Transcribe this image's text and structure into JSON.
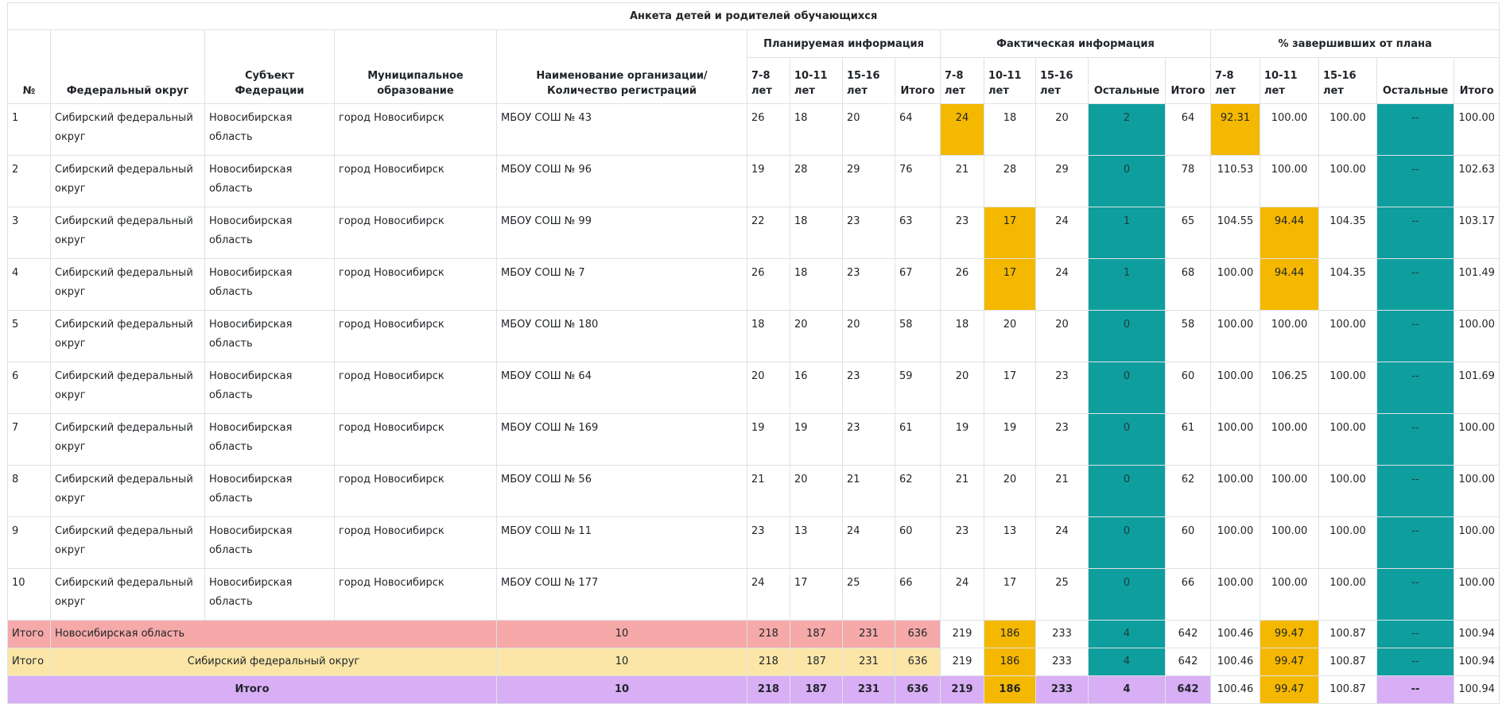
{
  "title": "Анкета детей и родителей обучающихся",
  "headers": {
    "no": "№",
    "okrug": "Федеральный округ",
    "subject": "Субъект Федерации",
    "municipal": "Муниципальное образование",
    "org": "Наименование организации/ Количество регистраций",
    "planned": "Планируемая информация",
    "actual": "Фактическая информация",
    "percent": "% завершивших от плана",
    "age_7_8": "7-8 лет",
    "age_10_11": "10-11 лет",
    "age_15_16": "15-16 лет",
    "others": "Остальные",
    "total": "Итого"
  },
  "rows": [
    {
      "no": "1",
      "okrug": "Сибирский федеральный округ",
      "subject": "Новосибирская область",
      "municipal": "город Новосибирск",
      "org": "МБОУ СОШ № 43",
      "p78": "26",
      "p1011": "18",
      "p1516": "20",
      "ptot": "64",
      "f78": "24",
      "f1011": "18",
      "f1516": "20",
      "fo": "2",
      "ftot": "64",
      "c78": "92.31",
      "c1011": "100.00",
      "c1516": "100.00",
      "co": "--",
      "ctot": "100.00"
    },
    {
      "no": "2",
      "okrug": "Сибирский федеральный округ",
      "subject": "Новосибирская область",
      "municipal": "город Новосибирск",
      "org": "МБОУ СОШ № 96",
      "p78": "19",
      "p1011": "28",
      "p1516": "29",
      "ptot": "76",
      "f78": "21",
      "f1011": "28",
      "f1516": "29",
      "fo": "0",
      "ftot": "78",
      "c78": "110.53",
      "c1011": "100.00",
      "c1516": "100.00",
      "co": "--",
      "ctot": "102.63"
    },
    {
      "no": "3",
      "okrug": "Сибирский федеральный округ",
      "subject": "Новосибирская область",
      "municipal": "город Новосибирск",
      "org": "МБОУ СОШ № 99",
      "p78": "22",
      "p1011": "18",
      "p1516": "23",
      "ptot": "63",
      "f78": "23",
      "f1011": "17",
      "f1516": "24",
      "fo": "1",
      "ftot": "65",
      "c78": "104.55",
      "c1011": "94.44",
      "c1516": "104.35",
      "co": "--",
      "ctot": "103.17"
    },
    {
      "no": "4",
      "okrug": "Сибирский федеральный округ",
      "subject": "Новосибирская область",
      "municipal": "город Новосибирск",
      "org": "МБОУ СОШ № 7",
      "p78": "26",
      "p1011": "18",
      "p1516": "23",
      "ptot": "67",
      "f78": "26",
      "f1011": "17",
      "f1516": "24",
      "fo": "1",
      "ftot": "68",
      "c78": "100.00",
      "c1011": "94.44",
      "c1516": "104.35",
      "co": "--",
      "ctot": "101.49"
    },
    {
      "no": "5",
      "okrug": "Сибирский федеральный округ",
      "subject": "Новосибирская область",
      "municipal": "город Новосибирск",
      "org": "МБОУ СОШ № 180",
      "p78": "18",
      "p1011": "20",
      "p1516": "20",
      "ptot": "58",
      "f78": "18",
      "f1011": "20",
      "f1516": "20",
      "fo": "0",
      "ftot": "58",
      "c78": "100.00",
      "c1011": "100.00",
      "c1516": "100.00",
      "co": "--",
      "ctot": "100.00"
    },
    {
      "no": "6",
      "okrug": "Сибирский федеральный округ",
      "subject": "Новосибирская область",
      "municipal": "город Новосибирск",
      "org": "МБОУ СОШ № 64",
      "p78": "20",
      "p1011": "16",
      "p1516": "23",
      "ptot": "59",
      "f78": "20",
      "f1011": "17",
      "f1516": "23",
      "fo": "0",
      "ftot": "60",
      "c78": "100.00",
      "c1011": "106.25",
      "c1516": "100.00",
      "co": "--",
      "ctot": "101.69"
    },
    {
      "no": "7",
      "okrug": "Сибирский федеральный округ",
      "subject": "Новосибирская область",
      "municipal": "город Новосибирск",
      "org": "МБОУ СОШ № 169",
      "p78": "19",
      "p1011": "19",
      "p1516": "23",
      "ptot": "61",
      "f78": "19",
      "f1011": "19",
      "f1516": "23",
      "fo": "0",
      "ftot": "61",
      "c78": "100.00",
      "c1011": "100.00",
      "c1516": "100.00",
      "co": "--",
      "ctot": "100.00"
    },
    {
      "no": "8",
      "okrug": "Сибирский федеральный округ",
      "subject": "Новосибирская область",
      "municipal": "город Новосибирск",
      "org": "МБОУ СОШ № 56",
      "p78": "21",
      "p1011": "20",
      "p1516": "21",
      "ptot": "62",
      "f78": "21",
      "f1011": "20",
      "f1516": "21",
      "fo": "0",
      "ftot": "62",
      "c78": "100.00",
      "c1011": "100.00",
      "c1516": "100.00",
      "co": "--",
      "ctot": "100.00"
    },
    {
      "no": "9",
      "okrug": "Сибирский федеральный округ",
      "subject": "Новосибирская область",
      "municipal": "город Новосибирск",
      "org": "МБОУ СОШ № 11",
      "p78": "23",
      "p1011": "13",
      "p1516": "24",
      "ptot": "60",
      "f78": "23",
      "f1011": "13",
      "f1516": "24",
      "fo": "0",
      "ftot": "60",
      "c78": "100.00",
      "c1011": "100.00",
      "c1516": "100.00",
      "co": "--",
      "ctot": "100.00"
    },
    {
      "no": "10",
      "okrug": "Сибирский федеральный округ",
      "subject": "Новосибирская область",
      "municipal": "город Новосибирск",
      "org": "МБОУ СОШ № 177",
      "p78": "24",
      "p1011": "17",
      "p1516": "25",
      "ptot": "66",
      "f78": "24",
      "f1011": "17",
      "f1516": "25",
      "fo": "0",
      "ftot": "66",
      "c78": "100.00",
      "c1011": "100.00",
      "c1516": "100.00",
      "co": "--",
      "ctot": "100.00"
    }
  ],
  "summary_oblast": {
    "label": "Итого",
    "name": "Новосибирская область",
    "count": "10",
    "p78": "218",
    "p1011": "187",
    "p1516": "231",
    "ptot": "636",
    "f78": "219",
    "f1011": "186",
    "f1516": "233",
    "fo": "4",
    "ftot": "642",
    "c78": "100.46",
    "c1011": "99.47",
    "c1516": "100.87",
    "co": "--",
    "ctot": "100.94"
  },
  "summary_okrug": {
    "label": "Итого",
    "name": "Сибирский федеральный округ",
    "count": "10",
    "p78": "218",
    "p1011": "187",
    "p1516": "231",
    "ptot": "636",
    "f78": "219",
    "f1011": "186",
    "f1516": "233",
    "fo": "4",
    "ftot": "642",
    "c78": "100.46",
    "c1011": "99.47",
    "c1516": "100.87",
    "co": "--",
    "ctot": "100.94"
  },
  "summary_total": {
    "label": "Итого",
    "count": "10",
    "p78": "218",
    "p1011": "187",
    "p1516": "231",
    "ptot": "636",
    "f78": "219",
    "f1011": "186",
    "f1516": "233",
    "fo": "4",
    "ftot": "642",
    "c78": "100.46",
    "c1011": "99.47",
    "c1516": "100.87",
    "co": "--",
    "ctot": "100.94"
  },
  "highlights": {
    "orange": "#f5b800",
    "teal": "#0f9e9e",
    "summary_oblast_bg": "#f6a9a9",
    "summary_okrug_bg": "#fbe6a8",
    "summary_total_bg": "#d8aef5",
    "orange_cells": [
      [
        0,
        "f78"
      ],
      [
        0,
        "c78"
      ],
      [
        2,
        "f1011"
      ],
      [
        2,
        "c1011"
      ],
      [
        3,
        "f1011"
      ],
      [
        3,
        "c1011"
      ]
    ]
  }
}
